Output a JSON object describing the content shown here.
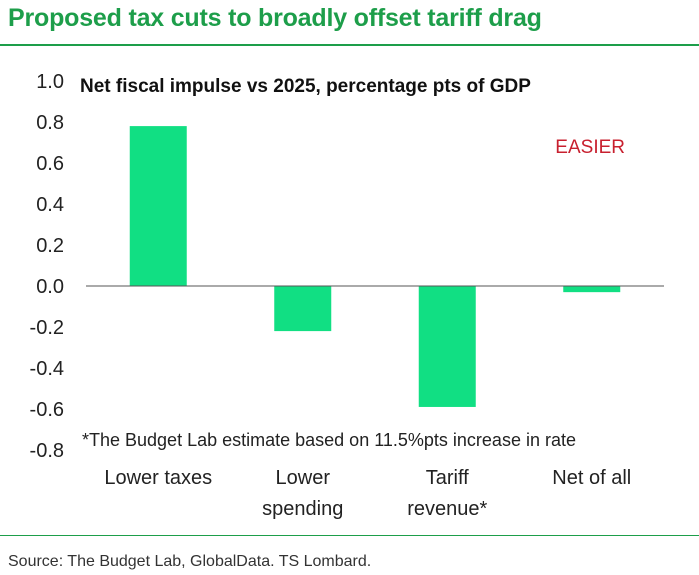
{
  "header": {
    "title": "Proposed tax cuts to broadly offset tariff drag"
  },
  "colors": {
    "title": "#1d9e4a",
    "bar": "#11df83",
    "annotation": "#c8202f",
    "text": "#222222",
    "axis": "#555555"
  },
  "chart_data": {
    "type": "bar",
    "title": "Net fiscal impulse vs 2025, percentage pts of GDP",
    "categories": [
      [
        "Lower taxes"
      ],
      [
        "Lower",
        "spending"
      ],
      [
        "Tariff",
        "revenue*"
      ],
      [
        "Net of all"
      ]
    ],
    "values": [
      0.78,
      -0.22,
      -0.59,
      -0.03
    ],
    "ylim": [
      -0.8,
      1.0
    ],
    "yticks": [
      "1.0",
      "0.8",
      "0.6",
      "0.4",
      "0.2",
      "0.0",
      "-0.2",
      "-0.4",
      "-0.6",
      "-0.8"
    ],
    "grid": false,
    "annotations": {
      "label": "EASIER",
      "note": "*The Budget Lab estimate based on 11.5%pts increase in rate"
    }
  },
  "footer": {
    "source": "Source: The Budget Lab, GlobalData. TS Lombard."
  }
}
